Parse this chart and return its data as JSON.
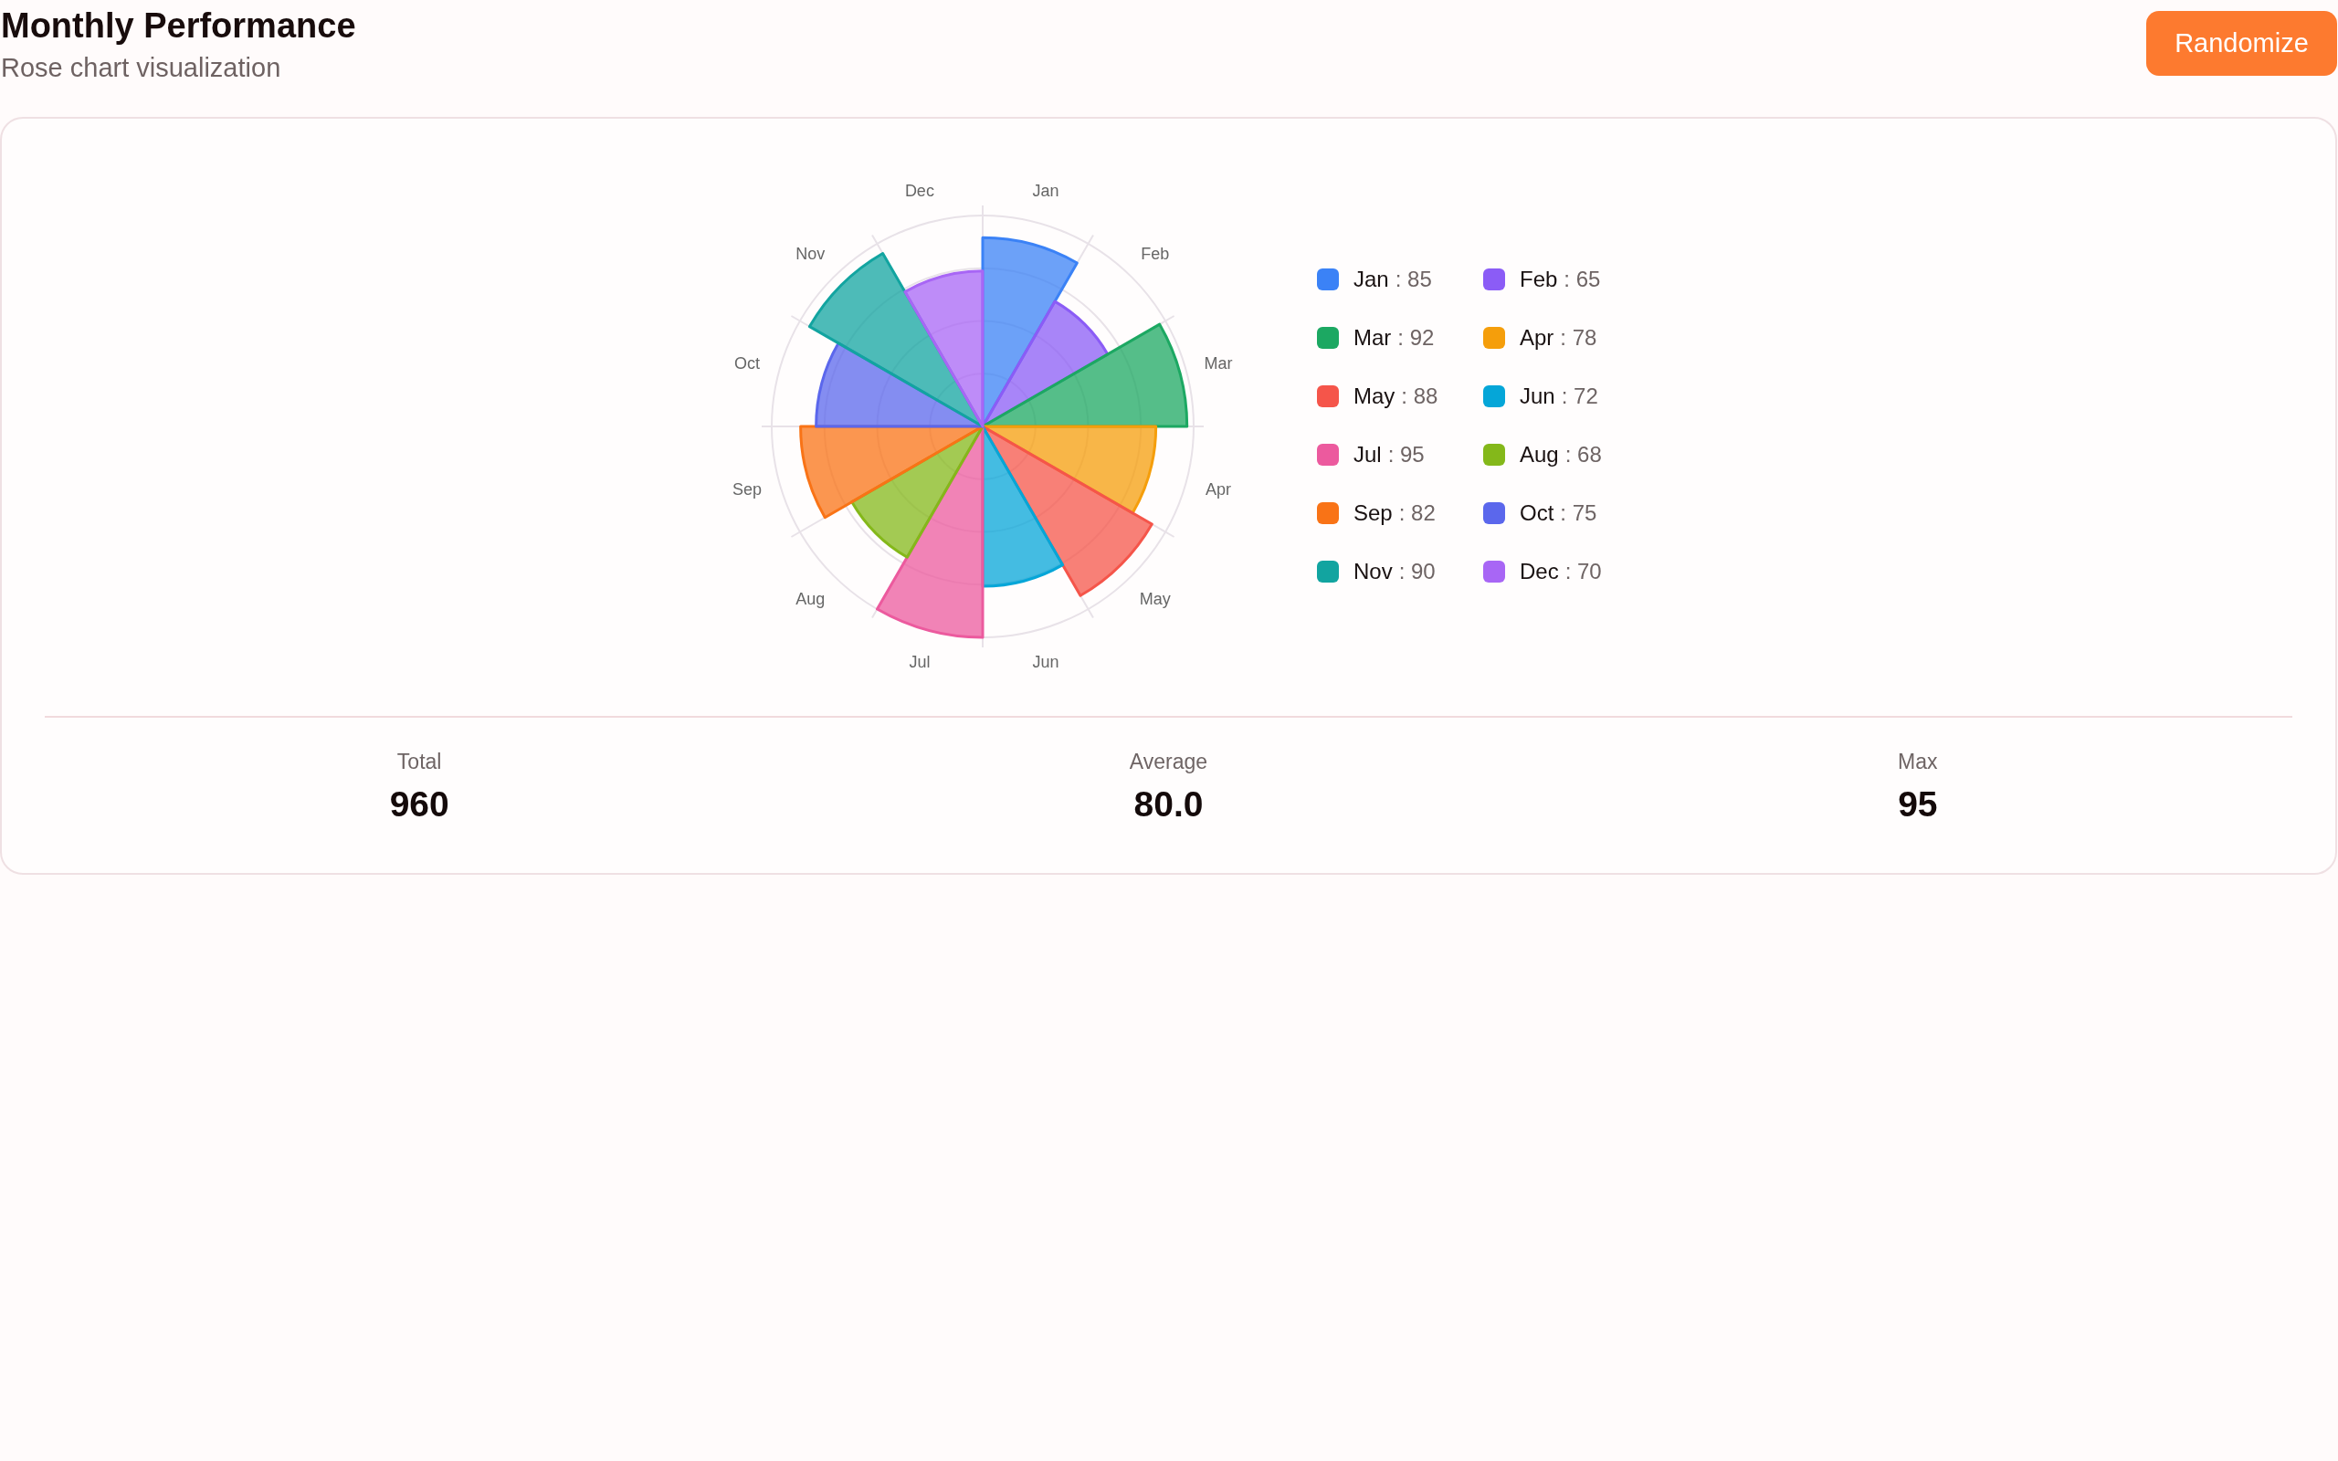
{
  "chart_data": {
    "type": "other",
    "title": "Monthly Performance",
    "subtitle": "Rose chart visualization",
    "categories": [
      "Jan",
      "Feb",
      "Mar",
      "Apr",
      "May",
      "Jun",
      "Jul",
      "Aug",
      "Sep",
      "Oct",
      "Nov",
      "Dec"
    ],
    "values": [
      85,
      65,
      92,
      78,
      88,
      72,
      95,
      68,
      82,
      75,
      90,
      70
    ],
    "value_labels": [
      ": 85",
      ": 65",
      ": 92",
      ": 78",
      ": 88",
      ": 72",
      ": 95",
      ": 68",
      ": 82",
      ": 75",
      ": 90",
      ": 70"
    ],
    "colors": [
      "#3b82f6",
      "#8b5cf6",
      "#1ca862",
      "#f59e0b",
      "#f5554a",
      "#05a6d8",
      "#ec5a9e",
      "#84b81a",
      "#f97316",
      "#5b67ec",
      "#12a4a0",
      "#a866f5"
    ],
    "annotations": [
      "Randomize",
      "Total",
      "960",
      "Average",
      "80.0",
      "Max",
      "95"
    ]
  }
}
